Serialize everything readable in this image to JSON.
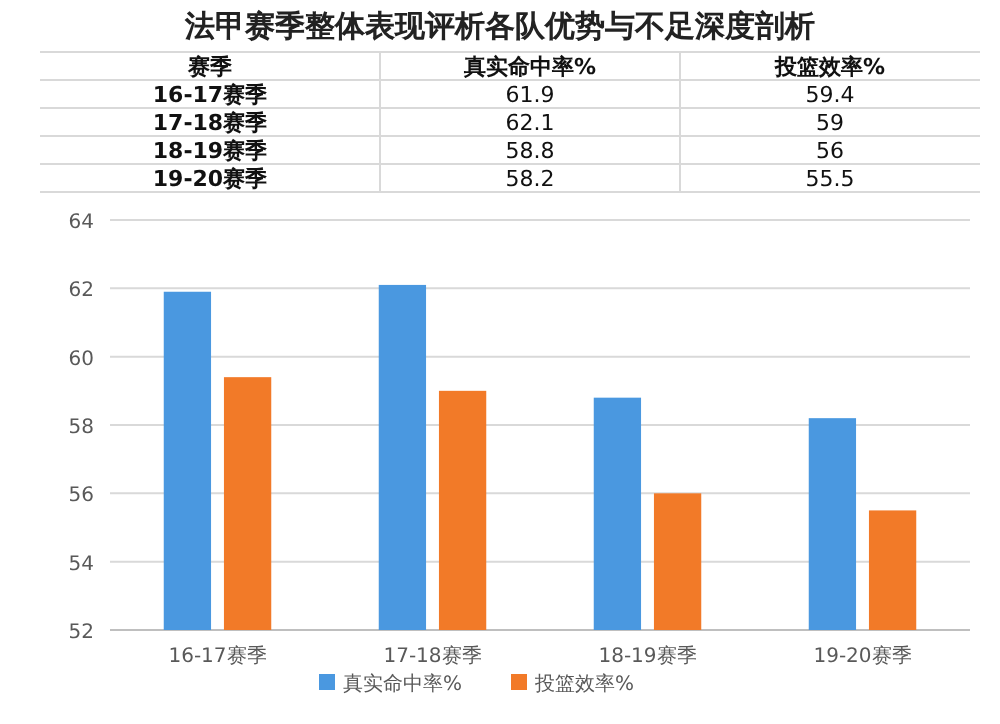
{
  "chart_data": [
    {
      "type": "other",
      "title": "法甲赛季整体表现评析各队优势与不足深度剖析",
      "annotations": [
        "赛季",
        "真实命中率%",
        "投篮效率%",
        "16-17赛季",
        "61.9",
        "59.4",
        "17-18赛季",
        "62.1",
        "59",
        "18-19赛季",
        "58.8",
        "56",
        "19-20赛季",
        "58.2",
        "55.5"
      ]
    },
    {
      "type": "bar",
      "categories": [
        "16-17赛季",
        "17-18赛季",
        "18-19赛季",
        "19-20赛季"
      ],
      "series": [
        {
          "name": "真实命中率%",
          "color": "#4a98e0",
          "values": [
            61.9,
            62.1,
            58.8,
            58.2
          ]
        },
        {
          "name": "投篮效率%",
          "color": "#f27a28",
          "values": [
            59.4,
            59,
            56,
            55.5
          ]
        }
      ],
      "ylim": [
        52,
        64
      ],
      "yticks": [
        52,
        54,
        56,
        58,
        60,
        62,
        64
      ],
      "grid": "y",
      "legend": "bottom"
    }
  ]
}
